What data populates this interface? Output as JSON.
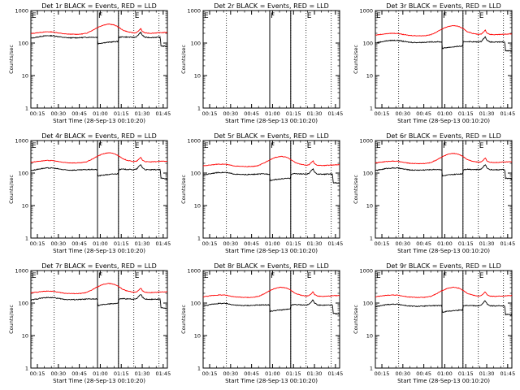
{
  "colors": {
    "events": "#000000",
    "lld": "#ff0000",
    "background": "#ffffff"
  },
  "chart_data": [
    {
      "type": "line",
      "title": "Det 1r BLACK = Events, RED = LLD",
      "has_data": true,
      "events_level": 1.0,
      "lld_level": 1.0
    },
    {
      "type": "line",
      "title": "Det 2r BLACK = Events, RED = LLD",
      "has_data": false,
      "events_level": 1.0,
      "lld_level": 1.0
    },
    {
      "type": "line",
      "title": "Det 3r BLACK = Events, RED = LLD",
      "has_data": true,
      "events_level": 0.72,
      "lld_level": 0.9
    },
    {
      "type": "line",
      "title": "Det 4r BLACK = Events, RED = LLD",
      "has_data": true,
      "events_level": 0.85,
      "lld_level": 1.1
    },
    {
      "type": "line",
      "title": "Det 5r BLACK = Events, RED = LLD",
      "has_data": true,
      "events_level": 0.62,
      "lld_level": 0.85
    },
    {
      "type": "line",
      "title": "Det 6r BLACK = Events, RED = LLD",
      "has_data": true,
      "events_level": 0.85,
      "lld_level": 1.05
    },
    {
      "type": "line",
      "title": "Det 7r BLACK = Events, RED = LLD",
      "has_data": true,
      "events_level": 0.88,
      "lld_level": 1.05
    },
    {
      "type": "line",
      "title": "Det 8r BLACK = Events, RED = LLD",
      "has_data": true,
      "events_level": 0.58,
      "lld_level": 0.8
    },
    {
      "type": "line",
      "title": "Det 9r BLACK = Events, RED = LLD",
      "has_data": true,
      "events_level": 0.55,
      "lld_level": 0.8
    }
  ],
  "shared": {
    "xlabel": "Start Time (28-Sep-13 00:10:20)",
    "ylabel": "Counts/sec",
    "x_ticks": [
      "00:15",
      "00:30",
      "00:45",
      "01:00",
      "01:15",
      "01:30",
      "01:45"
    ],
    "x_tick_minutes": [
      15,
      30,
      45,
      60,
      75,
      90,
      105
    ],
    "xlim_minutes": [
      10.33,
      108
    ],
    "y_scale": "log",
    "ylim": [
      1,
      1000
    ],
    "y_ticks": [
      "1",
      "10",
      "100",
      "1000"
    ],
    "y_tick_values": [
      1,
      10,
      100,
      1000
    ],
    "dotted_markers_minutes": [
      27,
      73,
      84,
      102
    ],
    "solid_markers_minutes": [
      58,
      73
    ],
    "flags": [
      {
        "label": "E",
        "minute": 10.33
      },
      {
        "label": "F",
        "minute": 58
      },
      {
        "label": "E",
        "minute": 84
      }
    ],
    "events_profile": [
      [
        10.33,
        140
      ],
      [
        14,
        150
      ],
      [
        18,
        162
      ],
      [
        22,
        168
      ],
      [
        26,
        168
      ],
      [
        30,
        158
      ],
      [
        34,
        148
      ],
      [
        38,
        145
      ],
      [
        42,
        145
      ],
      [
        46,
        147
      ],
      [
        50,
        150
      ],
      [
        54,
        152
      ],
      [
        57.9,
        150
      ],
      [
        58.1,
        95
      ],
      [
        62,
        102
      ],
      [
        66,
        106
      ],
      [
        70,
        110
      ],
      [
        72.9,
        112
      ],
      [
        73.1,
        150
      ],
      [
        76,
        155
      ],
      [
        80,
        152
      ],
      [
        84,
        150
      ],
      [
        86,
        155
      ],
      [
        88,
        195
      ],
      [
        89,
        215
      ],
      [
        90,
        175
      ],
      [
        92,
        150
      ],
      [
        96,
        148
      ],
      [
        100,
        150
      ],
      [
        103,
        150
      ],
      [
        103.2,
        82
      ],
      [
        106,
        80
      ],
      [
        108,
        78
      ]
    ],
    "lld_profile": [
      [
        10.33,
        195
      ],
      [
        14,
        205
      ],
      [
        18,
        215
      ],
      [
        22,
        222
      ],
      [
        26,
        220
      ],
      [
        30,
        205
      ],
      [
        34,
        192
      ],
      [
        38,
        188
      ],
      [
        42,
        186
      ],
      [
        46,
        188
      ],
      [
        50,
        200
      ],
      [
        54,
        240
      ],
      [
        58,
        300
      ],
      [
        62,
        355
      ],
      [
        66,
        385
      ],
      [
        70,
        360
      ],
      [
        73,
        310
      ],
      [
        76,
        250
      ],
      [
        80,
        220
      ],
      [
        84,
        205
      ],
      [
        86,
        210
      ],
      [
        88,
        250
      ],
      [
        89,
        280
      ],
      [
        90,
        230
      ],
      [
        92,
        205
      ],
      [
        96,
        200
      ],
      [
        100,
        205
      ],
      [
        104,
        210
      ],
      [
        108,
        212
      ]
    ]
  }
}
